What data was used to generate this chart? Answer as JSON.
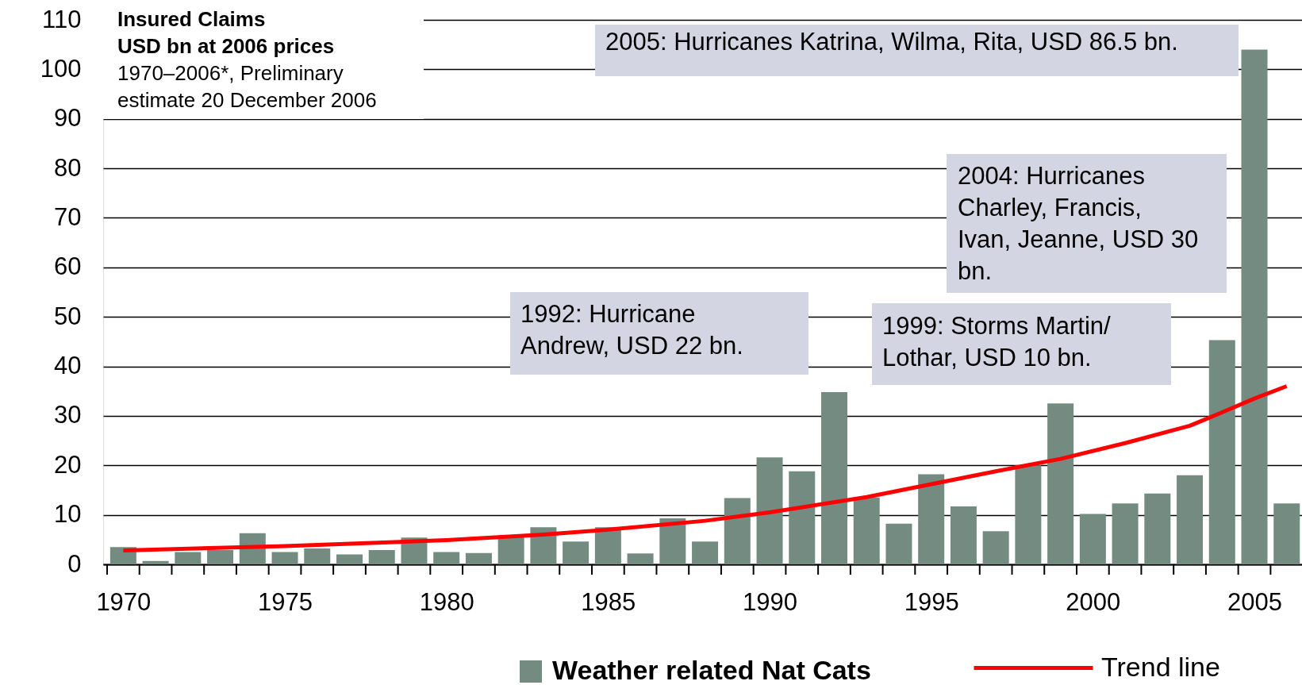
{
  "chart_data": {
    "type": "bar",
    "title": "Insured Claims",
    "subtitle": "USD bn at 2006 prices",
    "annotations": [
      "1970–2006*, Preliminary estimate 20 December 2006",
      "2005: Hurricanes Katrina, Wilma, Rita, USD 86.5 bn.",
      "2004: Hurricanes Charley, Francis, Ivan, Jeanne, USD 30 bn.",
      "1992: Hurricane Andrew, USD 22 bn.",
      "1999: Storms Martin/ Lothar, USD 10 bn."
    ],
    "x": [
      1970,
      1971,
      1972,
      1973,
      1974,
      1975,
      1976,
      1977,
      1978,
      1979,
      1980,
      1981,
      1982,
      1983,
      1984,
      1985,
      1986,
      1987,
      1988,
      1989,
      1990,
      1991,
      1992,
      1993,
      1994,
      1995,
      1996,
      1997,
      1998,
      1999,
      2000,
      2001,
      2002,
      2003,
      2004,
      2005,
      2006
    ],
    "series": [
      {
        "name": "Weather related Nat Cats",
        "color": "#738b80",
        "values": [
          3.5,
          0.7,
          2.5,
          2.9,
          6.3,
          2.5,
          3.2,
          2.0,
          2.9,
          5.4,
          2.5,
          2.3,
          5.7,
          7.5,
          4.6,
          7.5,
          2.2,
          9.3,
          4.6,
          13.4,
          21.6,
          18.8,
          34.8,
          13.5,
          8.2,
          18.2,
          11.7,
          6.7,
          20,
          32.5,
          10.2,
          12.3,
          14.3,
          18.0,
          45.3,
          104.0,
          12.3
        ]
      },
      {
        "name": "Trend line",
        "type": "line",
        "color": "#ff0000",
        "x": [
          1970,
          1975,
          1980,
          1983,
          1985,
          1988,
          1990,
          1993,
          1995,
          1997,
          1999,
          2001,
          2003,
          2004,
          2005,
          2006
        ],
        "values": [
          2.8,
          3.7,
          4.9,
          6.0,
          7.0,
          8.8,
          10.5,
          13.6,
          16.2,
          18.8,
          21.3,
          24.5,
          28,
          30.7,
          33.5,
          36
        ]
      }
    ],
    "xlim": [
      1969.5,
      2006.35
    ],
    "xticks": [
      {
        "value": 1969.5,
        "label": null
      },
      1970,
      {
        "value": 1970.5,
        "label": null
      },
      {
        "value": 1971.5,
        "label": null
      },
      {
        "value": 1972.5,
        "label": null
      },
      {
        "value": 1973.5,
        "label": null
      },
      {
        "value": 1974.5,
        "label": null
      },
      1975,
      {
        "value": 1975.5,
        "label": null
      },
      {
        "value": 1976.5,
        "label": null
      },
      {
        "value": 1977.5,
        "label": null
      },
      {
        "value": 1978.5,
        "label": null
      },
      {
        "value": 1979.5,
        "label": null
      },
      1980,
      {
        "value": 1980.5,
        "label": null
      },
      {
        "value": 1981.5,
        "label": null
      },
      {
        "value": 1982.5,
        "label": null
      },
      {
        "value": 1983.5,
        "label": null
      },
      {
        "value": 1984.5,
        "label": null
      },
      1985,
      {
        "value": 1985.5,
        "label": null
      },
      {
        "value": 1986.5,
        "label": null
      },
      {
        "value": 1987.5,
        "label": null
      },
      {
        "value": 1988.5,
        "label": null
      },
      {
        "value": 1989.5,
        "label": null
      },
      1990,
      {
        "value": 1990.5,
        "label": null
      },
      {
        "value": 1991.5,
        "label": null
      },
      {
        "value": 1992.5,
        "label": null
      },
      {
        "value": 1993.5,
        "label": null
      },
      {
        "value": 1994.5,
        "label": null
      },
      1995,
      {
        "value": 1995.5,
        "label": null
      },
      {
        "value": 1996.5,
        "label": null
      },
      {
        "value": 1997.5,
        "label": null
      },
      {
        "value": 1998.5,
        "label": null
      },
      {
        "value": 1999.5,
        "label": null
      },
      2000,
      {
        "value": 2000.5,
        "label": null
      },
      {
        "value": 2001.5,
        "label": null
      },
      {
        "value": 2002.5,
        "label": null
      },
      {
        "value": 2003.5,
        "label": null
      },
      {
        "value": 2004.5,
        "label": null
      },
      2005,
      {
        "value": 2005.5,
        "label": null
      }
    ],
    "ylim": [
      0,
      110
    ],
    "yticks": [
      0,
      10,
      20,
      30,
      40,
      50,
      60,
      70,
      80,
      90,
      100,
      110
    ],
    "grid": "y",
    "legend": "bottom"
  }
}
